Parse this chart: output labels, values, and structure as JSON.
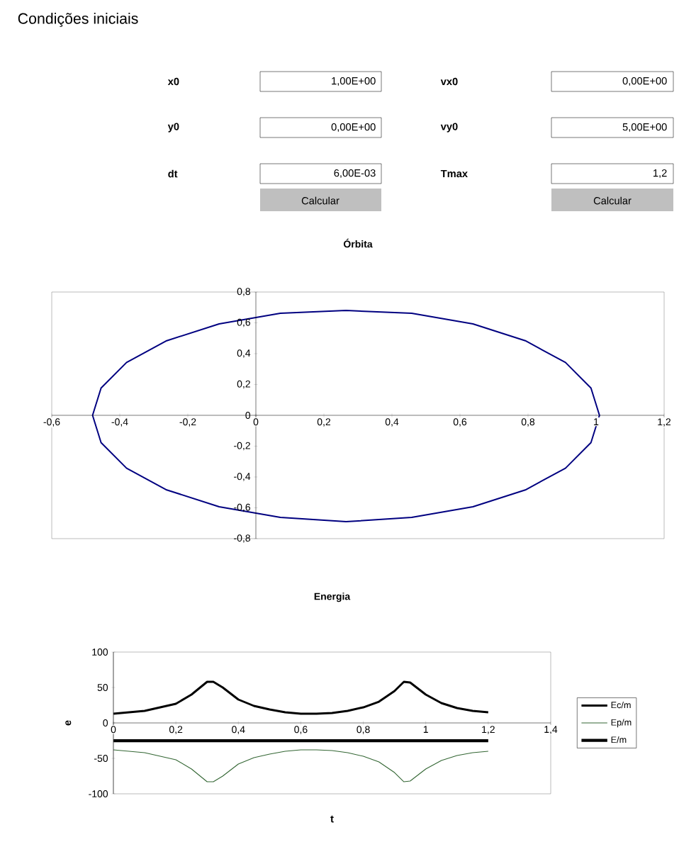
{
  "chart_data": [
    {
      "type": "other",
      "title": "Condições iniciais",
      "annotations": [
        "x0",
        "1,00E+00",
        "vx0",
        "0,00E+00",
        "y0",
        "0,00E+00",
        "vy0",
        "5,00E+00",
        "dt",
        "6,00E-03",
        "Tmax",
        "1,2",
        "Calcular",
        "Calcular"
      ]
    },
    {
      "type": "line",
      "title": "Órbita",
      "xlim": [
        -0.6,
        1.2
      ],
      "ylim": [
        -0.8,
        0.8
      ],
      "xticks": [
        {
          "value": -0.6,
          "label": "-0,6"
        },
        {
          "value": -0.4,
          "label": "-0,4"
        },
        {
          "value": -0.2,
          "label": "-0,2"
        },
        0,
        {
          "value": 0.2,
          "label": "0,2"
        },
        {
          "value": 0.4,
          "label": "0,4"
        },
        {
          "value": 0.6,
          "label": "0,6"
        },
        {
          "value": 0.8,
          "label": "0,8"
        },
        1,
        {
          "value": 1.2,
          "label": "1,2"
        }
      ],
      "yticks": [
        {
          "value": -0.8,
          "label": "-0,8"
        },
        {
          "value": -0.6,
          "label": "-0,6"
        },
        {
          "value": -0.4,
          "label": "-0,4"
        },
        {
          "value": -0.2,
          "label": "-0,2"
        },
        0,
        {
          "value": 0.2,
          "label": "0,2"
        },
        {
          "value": 0.4,
          "label": "0,4"
        },
        {
          "value": 0.6,
          "label": "0,6"
        },
        {
          "value": 0.8,
          "label": "0,8"
        }
      ],
      "series": [
        {
          "color": "#000080",
          "x": [
            1.01,
            0.985,
            0.91,
            0.792,
            0.638,
            0.458,
            0.265,
            0.072,
            -0.108,
            -0.262,
            -0.38,
            -0.455,
            -0.48,
            -0.455,
            -0.38,
            -0.262,
            -0.108,
            0.072,
            0.265,
            0.458,
            0.638,
            0.792,
            0.91,
            0.985,
            1.01,
            0.985,
            0.91,
            0.792,
            0.638,
            0.458,
            0.265,
            0.072,
            -0.108,
            -0.262,
            -0.38,
            -0.455,
            -0.48,
            -0.455,
            -0.38,
            -0.262,
            -0.108,
            0.072,
            0.265,
            0.458,
            0.638,
            0.792,
            0.91,
            0.985
          ],
          "values": [
            0,
            0.177,
            0.343,
            0.484,
            0.593,
            0.662,
            0.68,
            0.662,
            0.593,
            0.484,
            0.343,
            0.177,
            0,
            -0.177,
            -0.343,
            -0.484,
            -0.593,
            -0.662,
            -0.69,
            -0.662,
            -0.593,
            -0.484,
            -0.343,
            -0.177,
            0,
            0.177,
            0.343,
            0.484,
            0.593,
            0.662,
            0.68,
            0.662,
            0.593,
            0.484,
            0.343,
            0.177,
            0,
            -0.177,
            -0.343,
            -0.484,
            -0.593,
            -0.662,
            -0.69,
            -0.662,
            -0.593,
            -0.484,
            -0.343,
            -0.177
          ]
        }
      ]
    },
    {
      "type": "line",
      "title": "Energia",
      "xlabel": "t",
      "ylabel": "e",
      "xlim": [
        0,
        1.4
      ],
      "ylim": [
        -100,
        100
      ],
      "legend": "right",
      "xticks": [
        0,
        {
          "value": 0.2,
          "label": "0,2"
        },
        {
          "value": 0.4,
          "label": "0,4"
        },
        {
          "value": 0.6,
          "label": "0,6"
        },
        {
          "value": 0.8,
          "label": "0,8"
        },
        1,
        {
          "value": 1.2,
          "label": "1,2"
        },
        {
          "value": 1.4,
          "label": "1,4"
        }
      ],
      "yticks": [
        -100,
        -50,
        0,
        50,
        100
      ],
      "series": [
        {
          "name": "Ec/m",
          "color": "#000000",
          "x": [
            0,
            0.1,
            0.2,
            0.25,
            0.3,
            0.32,
            0.35,
            0.4,
            0.45,
            0.5,
            0.55,
            0.6,
            0.65,
            0.7,
            0.75,
            0.8,
            0.85,
            0.9,
            0.93,
            0.95,
            1.0,
            1.05,
            1.1,
            1.15,
            1.2
          ],
          "values": [
            13,
            17,
            27,
            40,
            58,
            58,
            50,
            33,
            24,
            19,
            15,
            13,
            13,
            14,
            17,
            22,
            30,
            45,
            58,
            57,
            40,
            28,
            21,
            17,
            15
          ]
        },
        {
          "name": "Ep/m",
          "color": "#336633",
          "x": [
            0,
            0.1,
            0.2,
            0.25,
            0.3,
            0.32,
            0.35,
            0.4,
            0.45,
            0.5,
            0.55,
            0.6,
            0.65,
            0.7,
            0.75,
            0.8,
            0.85,
            0.9,
            0.93,
            0.95,
            1.0,
            1.05,
            1.1,
            1.15,
            1.2
          ],
          "values": [
            -38,
            -42,
            -52,
            -65,
            -83,
            -83,
            -75,
            -58,
            -49,
            -44,
            -40,
            -38,
            -38,
            -39,
            -42,
            -47,
            -55,
            -70,
            -83,
            -82,
            -65,
            -53,
            -46,
            -42,
            -40
          ]
        },
        {
          "name": "E/m",
          "color": "#000000",
          "x": [
            0,
            1.2
          ],
          "values": [
            -25,
            -25
          ]
        }
      ]
    }
  ]
}
